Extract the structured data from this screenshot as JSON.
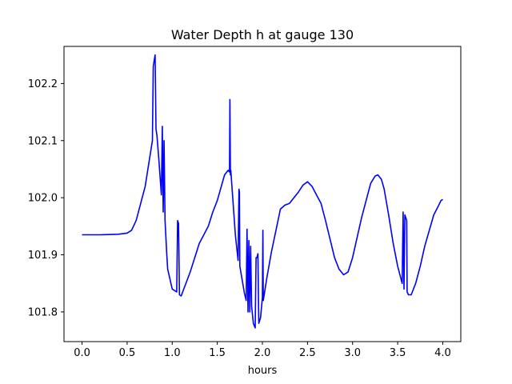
{
  "chart_data": {
    "type": "line",
    "title": "Water Depth h at gauge 130",
    "xlabel": "hours",
    "ylabel": "",
    "xlim": [
      -0.2,
      4.2
    ],
    "ylim": [
      101.748,
      102.265
    ],
    "xticks": [
      0.0,
      0.5,
      1.0,
      1.5,
      2.0,
      2.5,
      3.0,
      3.5,
      4.0
    ],
    "xtick_labels": [
      "0.0",
      "0.5",
      "1.0",
      "1.5",
      "2.0",
      "2.5",
      "3.0",
      "3.5",
      "4.0"
    ],
    "yticks": [
      101.8,
      101.9,
      102.0,
      102.1,
      102.2
    ],
    "ytick_labels": [
      "101.8",
      "101.9",
      "102.0",
      "102.1",
      "102.2"
    ],
    "grid": false,
    "legend": "none",
    "series": [
      {
        "color": "#0000ff",
        "x": [
          0.0,
          0.2,
          0.4,
          0.5,
          0.55,
          0.6,
          0.7,
          0.78,
          0.79,
          0.8,
          0.81,
          0.82,
          0.83,
          0.85,
          0.88,
          0.89,
          0.9,
          0.91,
          0.92,
          0.93,
          0.94,
          0.95,
          1.0,
          1.05,
          1.06,
          1.07,
          1.08,
          1.1,
          1.2,
          1.3,
          1.4,
          1.45,
          1.5,
          1.58,
          1.62,
          1.635,
          1.64,
          1.645,
          1.65,
          1.7,
          1.73,
          1.74,
          1.745,
          1.75,
          1.8,
          1.82,
          1.83,
          1.84,
          1.85,
          1.86,
          1.87,
          1.88,
          1.9,
          1.92,
          1.93,
          1.94,
          1.95,
          1.96,
          1.98,
          2.0,
          2.005,
          2.01,
          2.05,
          2.1,
          2.2,
          2.25,
          2.3,
          2.4,
          2.45,
          2.5,
          2.55,
          2.6,
          2.65,
          2.7,
          2.8,
          2.85,
          2.9,
          2.95,
          3.0,
          3.1,
          3.2,
          3.25,
          3.28,
          3.32,
          3.35,
          3.4,
          3.45,
          3.5,
          3.55,
          3.56,
          3.57,
          3.58,
          3.6,
          3.605,
          3.62,
          3.65,
          3.7,
          3.75,
          3.8,
          3.9,
          3.95,
          3.98,
          4.0
        ],
        "y": [
          101.935,
          101.935,
          101.936,
          101.938,
          101.943,
          101.96,
          102.02,
          102.1,
          102.23,
          102.24,
          102.25,
          102.12,
          102.11,
          102.07,
          102.005,
          102.125,
          101.975,
          102.1,
          101.96,
          101.93,
          101.9,
          101.875,
          101.84,
          101.835,
          101.96,
          101.955,
          101.83,
          101.828,
          101.87,
          101.92,
          101.95,
          101.975,
          101.995,
          102.04,
          102.048,
          102.045,
          102.172,
          102.04,
          102.048,
          101.935,
          101.89,
          102.015,
          102.01,
          101.88,
          101.833,
          101.82,
          101.945,
          101.8,
          101.925,
          101.8,
          101.915,
          101.81,
          101.78,
          101.772,
          101.895,
          101.895,
          101.902,
          101.78,
          101.79,
          101.825,
          101.943,
          101.82,
          101.86,
          101.905,
          101.98,
          101.987,
          101.99,
          102.01,
          102.022,
          102.028,
          102.02,
          102.005,
          101.99,
          101.96,
          101.895,
          101.875,
          101.865,
          101.87,
          101.895,
          101.965,
          102.025,
          102.038,
          102.04,
          102.032,
          102.015,
          101.97,
          101.92,
          101.88,
          101.85,
          101.975,
          101.84,
          101.97,
          101.96,
          101.835,
          101.83,
          101.83,
          101.85,
          101.88,
          101.915,
          101.97,
          101.985,
          101.995,
          101.997
        ]
      }
    ]
  }
}
